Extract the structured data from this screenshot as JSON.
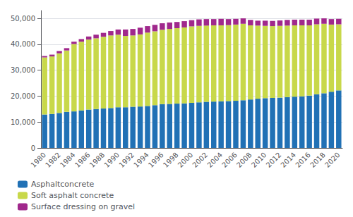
{
  "chart_data": {
    "type": "bar",
    "stacked": true,
    "grid": true,
    "legend": "bottom",
    "categories": [
      "1980",
      null,
      "1982",
      null,
      "1984",
      null,
      "1986",
      null,
      "1988",
      null,
      "1990",
      null,
      "1992",
      null,
      "1994",
      null,
      "1996",
      null,
      "1998",
      null,
      "2000",
      null,
      "2002",
      null,
      "2004",
      null,
      "2006",
      null,
      "2008",
      null,
      "2010",
      null,
      "2012",
      null,
      "2014",
      null,
      "2016",
      null,
      "2018",
      null,
      "2020"
    ],
    "series": [
      {
        "name": "Asphaltconcrete",
        "color": "#2171b5",
        "values": [
          12900,
          13100,
          13500,
          13900,
          14100,
          14500,
          14800,
          15000,
          15200,
          15400,
          15700,
          15700,
          15900,
          16000,
          16200,
          16500,
          16900,
          17000,
          17100,
          17200,
          17400,
          17600,
          17800,
          17900,
          18000,
          18100,
          18200,
          18400,
          18700,
          19000,
          19200,
          19300,
          19400,
          19600,
          19800,
          19900,
          20200,
          20700,
          21100,
          21700,
          22200
        ]
      },
      {
        "name": "Soft asphalt concrete",
        "color": "#c8d84a",
        "values": [
          22000,
          22200,
          23000,
          23700,
          26000,
          26500,
          27000,
          27300,
          27700,
          28000,
          28000,
          27500,
          27500,
          27800,
          28300,
          28500,
          28700,
          28900,
          29100,
          29300,
          29500,
          29500,
          29400,
          29400,
          29300,
          29300,
          29400,
          29500,
          28600,
          28200,
          27900,
          27700,
          27700,
          27600,
          27500,
          27400,
          27100,
          27000,
          26800,
          25900,
          25500
        ]
      },
      {
        "name": "Surface dressing on gravel",
        "color": "#a0288c",
        "values": [
          600,
          700,
          900,
          900,
          900,
          1000,
          1200,
          1400,
          1500,
          1700,
          2000,
          2500,
          2500,
          2600,
          2500,
          2500,
          2500,
          2500,
          2400,
          2400,
          2400,
          2500,
          2500,
          2400,
          2500,
          2300,
          2200,
          2100,
          2100,
          1900,
          2000,
          2000,
          2100,
          2200,
          2200,
          2200,
          2200,
          2200,
          2100,
          2100,
          2100
        ]
      }
    ],
    "ylim": [
      0,
      53000
    ],
    "yticks": [
      0,
      {
        "value": 10000,
        "label": "10,000"
      },
      {
        "value": 20000,
        "label": "20,000"
      },
      {
        "value": 30000,
        "label": "30,000"
      },
      {
        "value": 40000,
        "label": "40,000"
      },
      {
        "value": 50000,
        "label": "50,000"
      }
    ]
  }
}
